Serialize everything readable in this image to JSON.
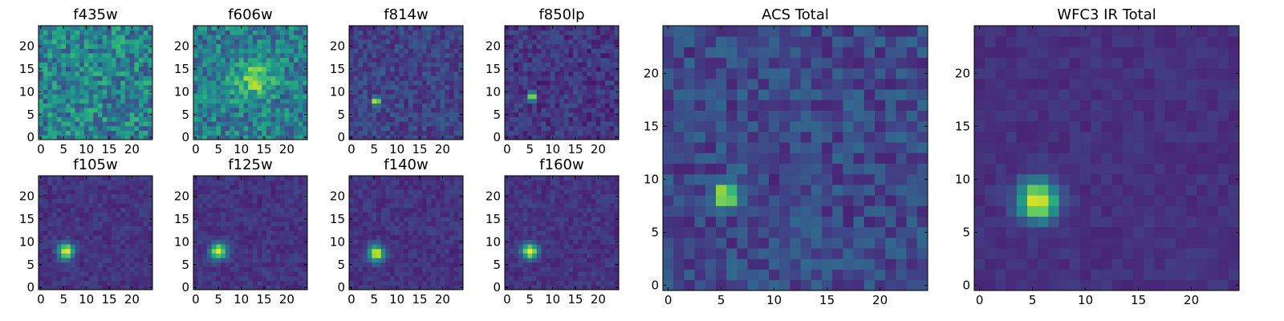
{
  "chart_data": [
    {
      "type": "heatmap",
      "title": "f435w",
      "grid_size": 25,
      "xticks": [
        0,
        5,
        10,
        15,
        20
      ],
      "yticks": [
        0,
        5,
        10,
        15,
        20
      ],
      "colormap": "viridis",
      "base_level": 0.45,
      "noise_level": 0.22,
      "source": null
    },
    {
      "type": "heatmap",
      "title": "f606w",
      "grid_size": 25,
      "xticks": [
        0,
        5,
        10,
        15,
        20
      ],
      "yticks": [
        0,
        5,
        10,
        15,
        20
      ],
      "colormap": "viridis",
      "base_level": 0.42,
      "noise_level": 0.2,
      "source": {
        "x": 12.5,
        "y": 12.5,
        "sigma": 3.0,
        "amplitude": 0.35
      }
    },
    {
      "type": "heatmap",
      "title": "f814w",
      "grid_size": 25,
      "xticks": [
        0,
        5,
        10,
        15,
        20
      ],
      "yticks": [
        0,
        5,
        10,
        15,
        20
      ],
      "colormap": "viridis",
      "base_level": 0.2,
      "noise_level": 0.1,
      "source": {
        "x": 5.5,
        "y": 8,
        "sigma": 0.6,
        "amplitude": 0.9
      }
    },
    {
      "type": "heatmap",
      "title": "f850lp",
      "grid_size": 25,
      "xticks": [
        0,
        5,
        10,
        15,
        20
      ],
      "yticks": [
        0,
        5,
        10,
        15,
        20
      ],
      "colormap": "viridis",
      "base_level": 0.16,
      "noise_level": 0.1,
      "source": {
        "x": 5.5,
        "y": 9,
        "sigma": 0.6,
        "amplitude": 0.9
      }
    },
    {
      "type": "heatmap",
      "title": "f105w",
      "grid_size": 25,
      "xticks": [
        0,
        5,
        10,
        15,
        20
      ],
      "yticks": [
        0,
        5,
        10,
        15,
        20
      ],
      "colormap": "viridis",
      "base_level": 0.15,
      "noise_level": 0.06,
      "source": {
        "x": 5.5,
        "y": 8,
        "sigma": 1.2,
        "amplitude": 0.85
      }
    },
    {
      "type": "heatmap",
      "title": "f125w",
      "grid_size": 25,
      "xticks": [
        0,
        5,
        10,
        15,
        20
      ],
      "yticks": [
        0,
        5,
        10,
        15,
        20
      ],
      "colormap": "viridis",
      "base_level": 0.15,
      "noise_level": 0.06,
      "source": {
        "x": 5,
        "y": 8,
        "sigma": 1.2,
        "amplitude": 0.85
      }
    },
    {
      "type": "heatmap",
      "title": "f140w",
      "grid_size": 25,
      "xticks": [
        0,
        5,
        10,
        15,
        20
      ],
      "yticks": [
        0,
        5,
        10,
        15,
        20
      ],
      "colormap": "viridis",
      "base_level": 0.15,
      "noise_level": 0.06,
      "source": {
        "x": 5.5,
        "y": 7.5,
        "sigma": 1.2,
        "amplitude": 0.85
      }
    },
    {
      "type": "heatmap",
      "title": "f160w",
      "grid_size": 25,
      "xticks": [
        0,
        5,
        10,
        15,
        20
      ],
      "yticks": [
        0,
        5,
        10,
        15,
        20
      ],
      "colormap": "viridis",
      "base_level": 0.15,
      "noise_level": 0.06,
      "source": {
        "x": 5,
        "y": 8,
        "sigma": 1.2,
        "amplitude": 0.85
      }
    },
    {
      "type": "heatmap",
      "title": "ACS Total",
      "grid_size": 25,
      "xticks": [
        0,
        5,
        10,
        15,
        20
      ],
      "yticks": [
        0,
        5,
        10,
        15,
        20
      ],
      "colormap": "viridis",
      "base_level": 0.22,
      "noise_level": 0.12,
      "source": {
        "x": 5.5,
        "y": 8.5,
        "sigma": 0.8,
        "amplitude": 0.8
      }
    },
    {
      "type": "heatmap",
      "title": "WFC3 IR Total",
      "grid_size": 25,
      "xticks": [
        0,
        5,
        10,
        15,
        20
      ],
      "yticks": [
        0,
        5,
        10,
        15,
        20
      ],
      "colormap": "viridis",
      "base_level": 0.14,
      "noise_level": 0.04,
      "source": {
        "x": 5.5,
        "y": 8,
        "sigma": 1.3,
        "amplitude": 0.85
      }
    }
  ]
}
